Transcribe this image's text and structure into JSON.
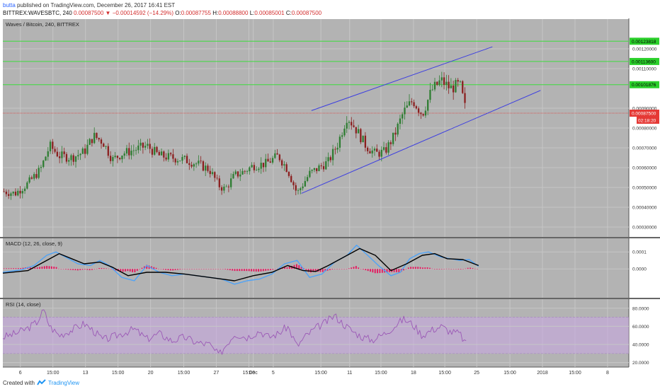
{
  "header": {
    "author": "butta",
    "published_text": "published on TradingView.com, December 26, 2017 16:41 EST",
    "symbol_line": "BITTREX:WAVESBTC, 240",
    "last_price": "0.00087500",
    "change_arrow": "▼",
    "change": "−0.00014592 (−14.29%)",
    "open_label": "O:",
    "open": "0.00087755",
    "high_label": "H:",
    "high": "0.00088800",
    "low_label": "L:",
    "low": "0.00085001",
    "close_label": "C:",
    "close": "0.00087500"
  },
  "footer": {
    "created_with": "Created with",
    "brand": "TradingView"
  },
  "colors": {
    "pane_bg": "#b3b3b3",
    "up": "#2e7d32",
    "down": "#8b1f1f",
    "channel": "#3d3fe0",
    "hline": "#3ddc3d",
    "macd": "#4fa3f7",
    "signal": "#000000",
    "hist": "#e8115b",
    "rsi": "#9b59b6",
    "rsi_band": "#c9a6e3",
    "price_tag": "#e53935"
  },
  "chart_data": [
    {
      "type": "candlestick",
      "title": "Waves / Bitcoin, 240, BITTREX",
      "ylim": [
        0.00025,
        0.00135
      ],
      "y_ticks": [
        "0.00120000",
        "0.00110000",
        "0.00090000",
        "0.00080000",
        "0.00070000",
        "0.00060000",
        "0.00050000",
        "0.00040000",
        "0.00030000"
      ],
      "horizontal_levels": [
        "0.00123818",
        "0.00113600",
        "0.00101876"
      ],
      "last_price_tag": "0.00087500",
      "countdown_tag": "02:18:20",
      "channel_lines": [
        {
          "x": [
            0.493,
            0.782
          ],
          "y": [
            0.000888,
            0.00121
          ]
        },
        {
          "x": [
            0.477,
            0.859
          ],
          "y": [
            0.00047,
            0.00099
          ]
        }
      ],
      "close_path": {
        "x": [
          0.0,
          0.02,
          0.04,
          0.06,
          0.075,
          0.09,
          0.11,
          0.13,
          0.145,
          0.16,
          0.175,
          0.19,
          0.21,
          0.23,
          0.25,
          0.27,
          0.29,
          0.31,
          0.33,
          0.345,
          0.355,
          0.37,
          0.385,
          0.4,
          0.42,
          0.44,
          0.455,
          0.47,
          0.48,
          0.49,
          0.505,
          0.52,
          0.535,
          0.55,
          0.565,
          0.58,
          0.595,
          0.61,
          0.625,
          0.64,
          0.655,
          0.67,
          0.685,
          0.7,
          0.715,
          0.73,
          0.74
        ],
        "y": [
          0.00048,
          0.00047,
          0.00052,
          0.00059,
          0.00071,
          0.00066,
          0.00065,
          0.00068,
          0.00076,
          0.00073,
          0.00064,
          0.00067,
          0.00069,
          0.00071,
          0.00066,
          0.00065,
          0.00064,
          0.00062,
          0.00059,
          0.00051,
          0.00049,
          0.00056,
          0.00058,
          0.00061,
          0.00062,
          0.00066,
          0.00059,
          0.00047,
          0.00052,
          0.00057,
          0.0006,
          0.00063,
          0.00072,
          0.00086,
          0.00079,
          0.00071,
          0.00067,
          0.00068,
          0.00076,
          0.00088,
          0.00094,
          0.00087,
          0.00099,
          0.00104,
          0.001,
          0.00102,
          0.00088
        ]
      }
    },
    {
      "type": "line",
      "title": "MACD (12, 26, close, 9)",
      "ylim": [
        -0.00017,
        0.00018
      ],
      "y_ticks": [
        "0.0001",
        "0.0000"
      ],
      "series": [
        {
          "kind": "macd",
          "x": [
            0.0,
            0.03,
            0.05,
            0.07,
            0.085,
            0.1,
            0.12,
            0.14,
            0.155,
            0.17,
            0.19,
            0.21,
            0.23,
            0.25,
            0.27,
            0.29,
            0.31,
            0.33,
            0.35,
            0.37,
            0.39,
            0.41,
            0.43,
            0.45,
            0.47,
            0.49,
            0.51,
            0.53,
            0.55,
            0.565,
            0.58,
            0.6,
            0.62,
            0.635,
            0.65,
            0.665,
            0.68,
            0.7,
            0.715,
            0.73,
            0.745,
            0.76
          ],
          "y": [
            -2e-05,
            -5e-06,
            2e-05,
            8e-05,
            0.0001,
            7e-05,
            3e-05,
            2e-05,
            5e-05,
            2e-05,
            -5e-05,
            -7e-05,
            2e-05,
            -2e-05,
            -4e-05,
            -3e-05,
            -4e-05,
            -5e-05,
            -6e-05,
            -9e-05,
            -7e-05,
            -6e-05,
            -3e-05,
            3e-05,
            5e-05,
            -5e-05,
            -3e-05,
            4e-05,
            8e-05,
            0.00014,
            9e-05,
            2e-05,
            -4e-05,
            -2e-05,
            6e-05,
            9e-05,
            0.0001,
            7e-05,
            6e-05,
            5e-05,
            5.5e-05,
            1.5e-05
          ]
        },
        {
          "kind": "signal",
          "x": [
            0.0,
            0.04,
            0.07,
            0.09,
            0.11,
            0.13,
            0.155,
            0.175,
            0.2,
            0.23,
            0.26,
            0.29,
            0.33,
            0.37,
            0.4,
            0.43,
            0.455,
            0.48,
            0.5,
            0.52,
            0.545,
            0.57,
            0.595,
            0.62,
            0.645,
            0.67,
            0.69,
            0.71,
            0.735,
            0.76
          ],
          "y": [
            -2.5e-05,
            -1e-05,
            5e-05,
            9e-05,
            6e-05,
            3e-05,
            4e-05,
            1e-05,
            -4e-05,
            -2e-05,
            -2e-05,
            -3e-05,
            -5e-05,
            -7e-05,
            -4e-05,
            -2e-05,
            2e-05,
            -1e-05,
            -1.5e-05,
            2e-05,
            7e-05,
            0.00012,
            8e-05,
            -1e-05,
            3e-05,
            8e-05,
            9e-05,
            6e-05,
            5.5e-05,
            2e-05
          ]
        }
      ]
    },
    {
      "type": "line",
      "title": "RSI (14, close)",
      "ylim": [
        15,
        90
      ],
      "y_ticks": [
        "80.0000",
        "60.0000",
        "40.0000",
        "20.0000"
      ],
      "band": [
        30,
        70
      ],
      "series": [
        {
          "kind": "rsi",
          "x": [
            0.0,
            0.02,
            0.04,
            0.055,
            0.065,
            0.075,
            0.09,
            0.11,
            0.13,
            0.145,
            0.16,
            0.175,
            0.19,
            0.21,
            0.23,
            0.25,
            0.27,
            0.29,
            0.31,
            0.33,
            0.345,
            0.355,
            0.37,
            0.39,
            0.41,
            0.425,
            0.44,
            0.455,
            0.47,
            0.485,
            0.5,
            0.515,
            0.53,
            0.545,
            0.56,
            0.575,
            0.59,
            0.61,
            0.625,
            0.64,
            0.655,
            0.67,
            0.685,
            0.7,
            0.715,
            0.73,
            0.74
          ],
          "y": [
            48,
            52,
            58,
            65,
            78,
            60,
            50,
            56,
            63,
            55,
            45,
            48,
            52,
            57,
            46,
            52,
            44,
            48,
            42,
            40,
            28,
            38,
            52,
            48,
            55,
            48,
            52,
            60,
            38,
            50,
            58,
            64,
            72,
            62,
            54,
            48,
            45,
            52,
            60,
            68,
            62,
            50,
            56,
            60,
            54,
            52,
            40
          ]
        }
      ]
    }
  ],
  "x_axis": {
    "labels": [
      "6",
      "15:00",
      "13",
      "15:00",
      "20",
      "15:00",
      "27",
      "15:00",
      "Dec",
      "5",
      "15:00",
      "11",
      "15:00",
      "18",
      "15:00",
      "25",
      "15:00",
      "2018",
      "15:00",
      "8"
    ],
    "positions": [
      0.028,
      0.08,
      0.132,
      0.184,
      0.236,
      0.289,
      0.341,
      0.393,
      0.4,
      0.432,
      0.508,
      0.554,
      0.604,
      0.656,
      0.706,
      0.757,
      0.81,
      0.862,
      0.914,
      0.966
    ]
  }
}
